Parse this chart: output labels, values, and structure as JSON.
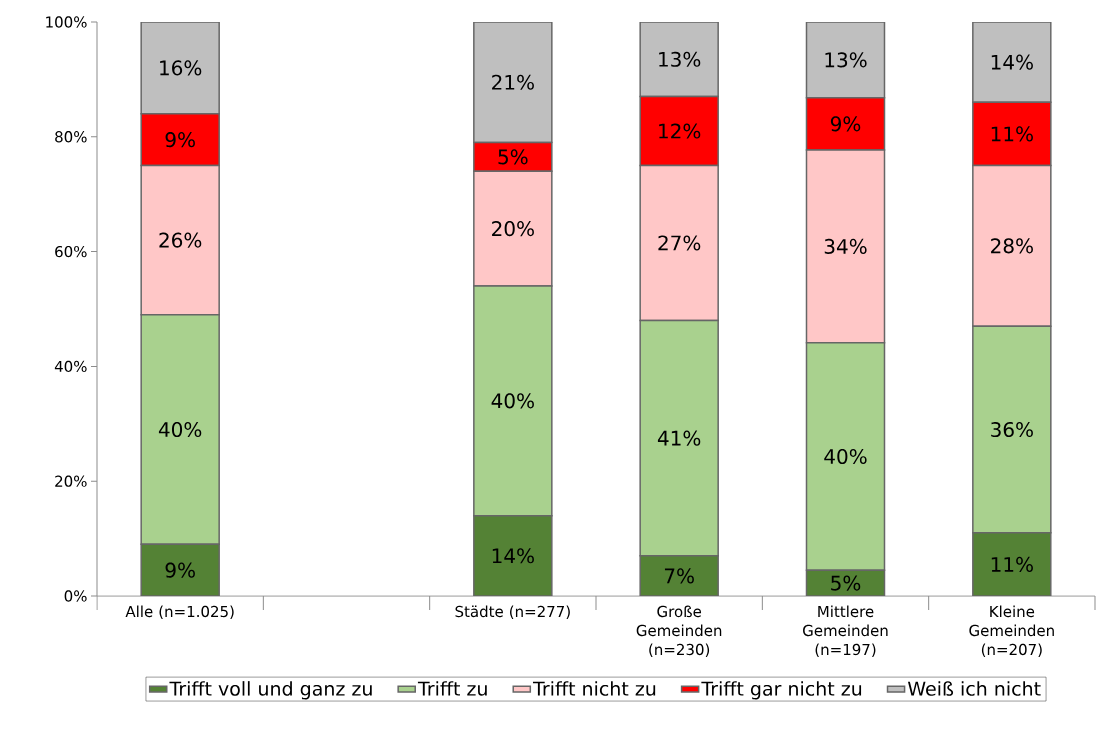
{
  "chart_data": {
    "type": "bar",
    "stacked": true,
    "categories": [
      "Alle (n=1.025)",
      null,
      "Städte (n=277)",
      "Große Gemeinden (n=230)",
      "Mittlere Gemeinden (n=197)",
      "Kleine Gemeinden (n=207)"
    ],
    "series": [
      {
        "name": "Trifft voll und ganz zu",
        "color": "#548235",
        "values": [
          9,
          null,
          14,
          7,
          4.5,
          11
        ],
        "value_labels": [
          "9%",
          null,
          "14%",
          "7%",
          "5%",
          "11%"
        ]
      },
      {
        "name": "Trifft zu",
        "color": "#a9d18e",
        "values": [
          40,
          null,
          40,
          41,
          39.6,
          36
        ],
        "value_labels": [
          "40%",
          null,
          "40%",
          "41%",
          "40%",
          "36%"
        ]
      },
      {
        "name": "Trifft nicht zu",
        "color": "#ffc7c7",
        "values": [
          26,
          null,
          20,
          27,
          33.6,
          28
        ],
        "value_labels": [
          "26%",
          null,
          "20%",
          "27%",
          "34%",
          "28%"
        ]
      },
      {
        "name": "Trifft gar nicht zu",
        "color": "#ff0000",
        "values": [
          9,
          null,
          5,
          12,
          9.1,
          11
        ],
        "value_labels": [
          "9%",
          null,
          "5%",
          "12%",
          "9%",
          "11%"
        ]
      },
      {
        "name": "Weiß ich nicht",
        "color": "#bfbfbf",
        "values": [
          16,
          null,
          21,
          13,
          13.2,
          14
        ],
        "value_labels": [
          "16%",
          null,
          "21%",
          "13%",
          "13%",
          "14%"
        ]
      }
    ],
    "ylim": [
      0,
      100
    ],
    "yticks": [
      {
        "value": 0,
        "label": "0%"
      },
      {
        "value": 20,
        "label": "20%"
      },
      {
        "value": 40,
        "label": "40%"
      },
      {
        "value": 60,
        "label": "60%"
      },
      {
        "value": 80,
        "label": "80%"
      },
      {
        "value": 100,
        "label": "100%"
      }
    ],
    "legend": "bottom",
    "grid": false
  }
}
